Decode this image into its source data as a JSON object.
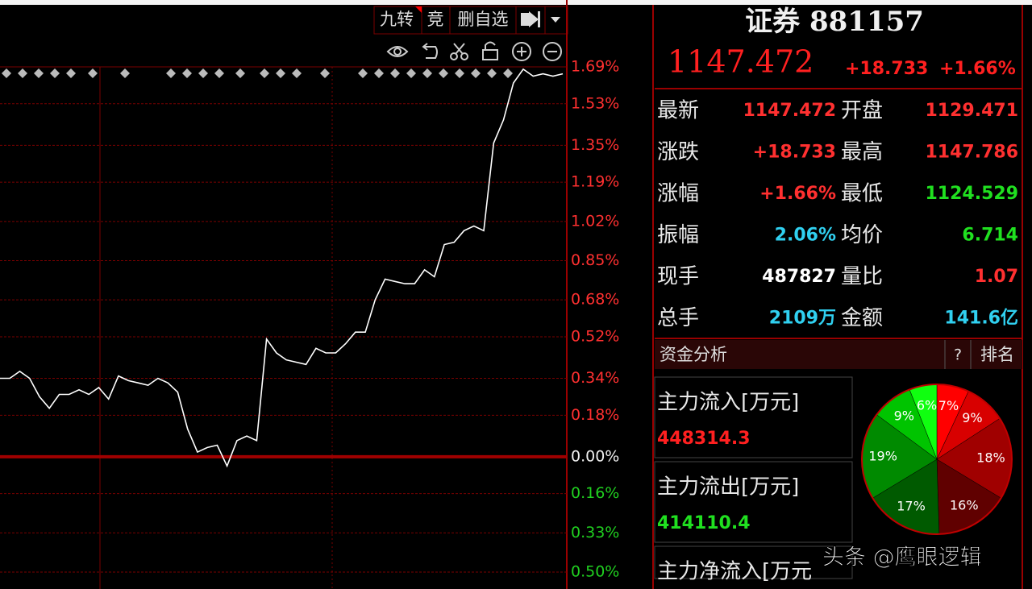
{
  "chart_data": [
    {
      "type": "line",
      "color": "#ffffff",
      "values": [
        0.34,
        0.34,
        0.37,
        0.34,
        0.26,
        0.21,
        0.27,
        0.27,
        0.29,
        0.27,
        0.3,
        0.25,
        0.35,
        0.33,
        0.32,
        0.31,
        0.34,
        0.32,
        0.28,
        0.12,
        0.02,
        0.04,
        0.05,
        -0.04,
        0.07,
        0.09,
        0.07,
        0.51,
        0.45,
        0.42,
        0.41,
        0.4,
        0.47,
        0.45,
        0.45,
        0.49,
        0.54,
        0.54,
        0.68,
        0.77,
        0.76,
        0.75,
        0.75,
        0.81,
        0.78,
        0.92,
        0.93,
        0.98,
        1.0,
        0.98,
        1.36,
        1.46,
        1.62,
        1.68,
        1.65,
        1.66,
        1.65,
        1.66
      ],
      "ylim": [
        -0.5,
        1.69
      ],
      "yticks": [
        {
          "value": 1.69,
          "label": "1.69%"
        },
        {
          "value": 1.53,
          "label": "1.53%"
        },
        {
          "value": 1.35,
          "label": "1.35%"
        },
        {
          "value": 1.19,
          "label": "1.19%"
        },
        {
          "value": 1.02,
          "label": "1.02%"
        },
        {
          "value": 0.85,
          "label": "0.85%"
        },
        {
          "value": 0.68,
          "label": "0.68%"
        },
        {
          "value": 0.52,
          "label": "0.52%"
        },
        {
          "value": 0.34,
          "label": "0.34%"
        },
        {
          "value": 0.18,
          "label": "0.18%"
        },
        {
          "value": 0,
          "label": "0.00%"
        },
        {
          "value": -0.16,
          "label": "0.16%"
        },
        {
          "value": -0.33,
          "label": "0.33%"
        },
        {
          "value": -0.5,
          "label": "0.50%"
        }
      ],
      "grid": true
    },
    {
      "type": "pie",
      "values": [
        7,
        9,
        18,
        16,
        17,
        19,
        9,
        6
      ],
      "value_labels": [
        "7%",
        "9%",
        "18%",
        "16%",
        "17%",
        "19%",
        "9%",
        "6%"
      ],
      "colors": [
        "#ff0000",
        "#d80000",
        "#a00000",
        "#600000",
        "#005a00",
        "#008a00",
        "#00c400",
        "#10ff10"
      ]
    }
  ],
  "toolbar": [
    "九转",
    "竞",
    "删自选"
  ],
  "quote": {
    "name": "证券 881157",
    "price": "1147.472",
    "change": "+18.733",
    "percent": "+1.66%"
  },
  "stats": [
    {
      "label": "最新",
      "value": "1147.472",
      "color": "#ff3030"
    },
    {
      "label": "开盘",
      "value": "1129.471",
      "color": "#ff3030"
    },
    {
      "label": "涨跌",
      "value": "+18.733",
      "color": "#ff3030"
    },
    {
      "label": "最高",
      "value": "1147.786",
      "color": "#ff3030"
    },
    {
      "label": "涨幅",
      "value": "+1.66%",
      "color": "#ff3030"
    },
    {
      "label": "最低",
      "value": "1124.529",
      "color": "#20e020"
    },
    {
      "label": "振幅",
      "value": "2.06%",
      "color": "#30d0f0"
    },
    {
      "label": "均价",
      "value": "6.714",
      "color": "#20e020"
    },
    {
      "label": "现手",
      "value": "487827",
      "color": "#ffffff"
    },
    {
      "label": "量比",
      "value": "1.07",
      "color": "#ff3030"
    },
    {
      "label": "总手",
      "value": "2109万",
      "color": "#30d0f0"
    },
    {
      "label": "金额",
      "value": "141.6亿",
      "color": "#30d0f0"
    }
  ],
  "fund": {
    "title": "资金分析",
    "help": "?",
    "rank": "排名",
    "items": [
      {
        "label": "主力流入[万元]",
        "value": "448314.3",
        "color": "#ff2020"
      },
      {
        "label": "主力流出[万元]",
        "value": "414110.4",
        "color": "#20e020"
      },
      {
        "label": "主力净流入[万元"
      }
    ]
  },
  "watermark": "头条 @鹰眼逻辑"
}
